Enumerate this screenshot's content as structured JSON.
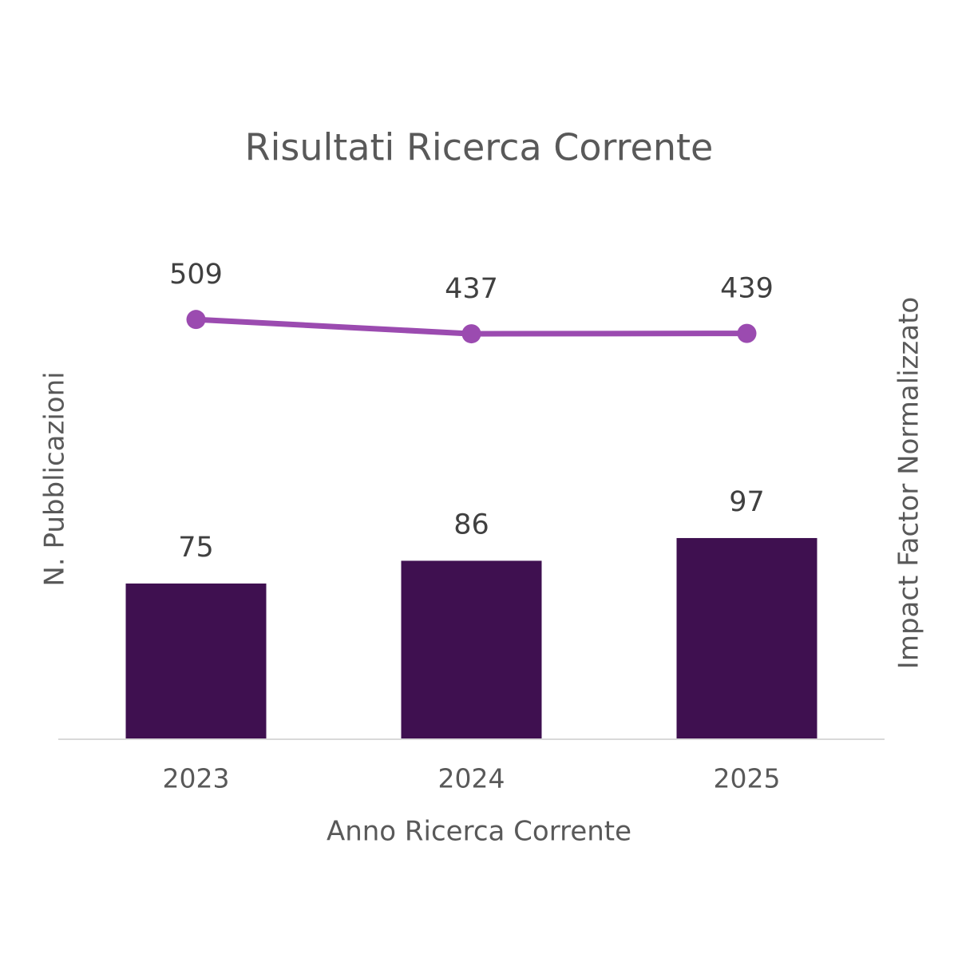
{
  "chart_data": {
    "type": "bar",
    "title": "Risultati Ricerca Corrente",
    "x_label": "Anno Ricerca Corrente",
    "y_label": "N. Pubblicazioni",
    "y2_label": "Impact Factor Normalizzato",
    "categories": [
      "2023",
      "2024",
      "2025"
    ],
    "series": [
      {
        "type": "bar",
        "color": "#3f1050",
        "values": [
          75,
          86,
          97
        ]
      },
      {
        "type": "line",
        "axis": "y2",
        "color": "#9b4bb0",
        "values": [
          509,
          437,
          439
        ]
      }
    ],
    "ylim": [
      0,
      250
    ],
    "y2lim": [
      -1600,
      1000
    ]
  }
}
